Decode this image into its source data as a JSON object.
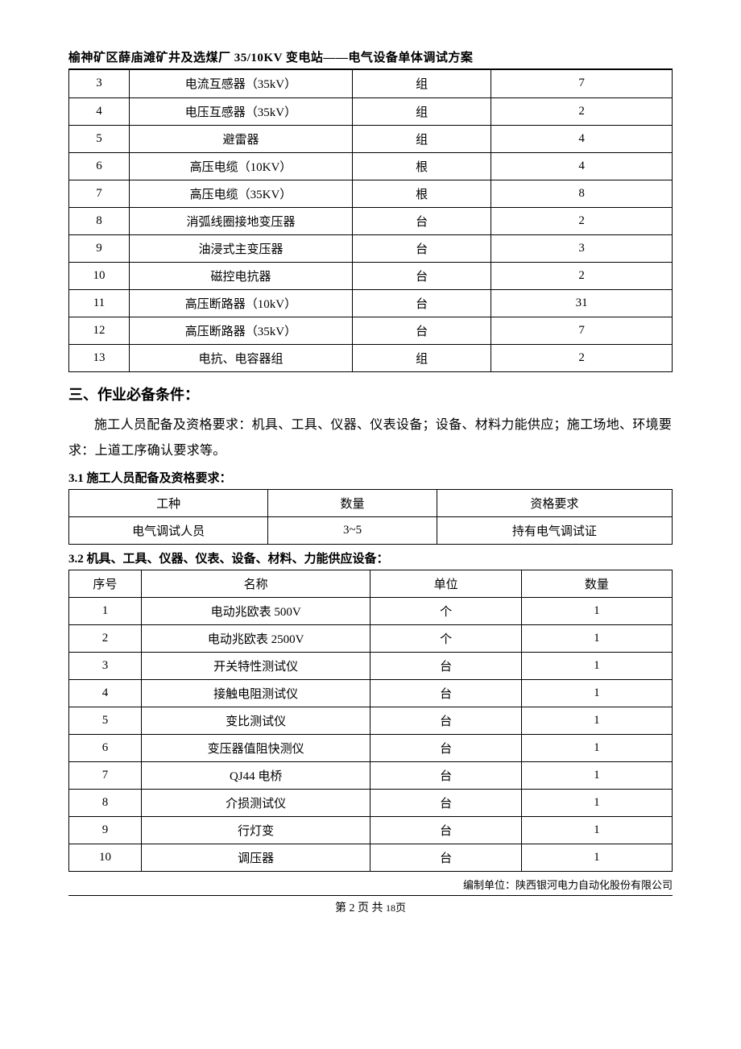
{
  "header": {
    "title": "榆神矿区薛庙滩矿井及选煤厂 35/10KV 变电站——电气设备单体调试方案"
  },
  "table1": {
    "rows": [
      [
        "3",
        "电流互感器（35kV）",
        "组",
        "7"
      ],
      [
        "4",
        "电压互感器（35kV）",
        "组",
        "2"
      ],
      [
        "5",
        "避雷器",
        "组",
        "4"
      ],
      [
        "6",
        "高压电缆（10KV）",
        "根",
        "4"
      ],
      [
        "7",
        "高压电缆（35KV）",
        "根",
        "8"
      ],
      [
        "8",
        "消弧线圈接地变压器",
        "台",
        "2"
      ],
      [
        "9",
        "油浸式主变压器",
        "台",
        "3"
      ],
      [
        "10",
        "磁控电抗器",
        "台",
        "2"
      ],
      [
        "11",
        "高压断路器（10kV）",
        "台",
        "31"
      ],
      [
        "12",
        "高压断路器（35kV）",
        "台",
        "7"
      ],
      [
        "13",
        "电抗、电容器组",
        "组",
        "2"
      ]
    ]
  },
  "section3": {
    "heading": "三、作业必备条件：",
    "body": "施工人员配备及资格要求：机具、工具、仪器、仪表设备；设备、材料力能供应；施工场地、环境要求：上道工序确认要求等。"
  },
  "sub31": {
    "heading": "3.1 施工人员配备及资格要求：",
    "columns": [
      "工种",
      "数量",
      "资格要求"
    ],
    "rows": [
      [
        "电气调试人员",
        "3~5",
        "持有电气调试证"
      ]
    ]
  },
  "sub32": {
    "heading": "3.2 机具、工具、仪器、仪表、设备、材料、力能供应设备：",
    "columns": [
      "序号",
      "名称",
      "单位",
      "数量"
    ],
    "rows": [
      [
        "1",
        "电动兆欧表 500V",
        "个",
        "1"
      ],
      [
        "2",
        "电动兆欧表 2500V",
        "个",
        "1"
      ],
      [
        "3",
        "开关特性测试仪",
        "台",
        "1"
      ],
      [
        "4",
        "接触电阻测试仪",
        "台",
        "1"
      ],
      [
        "5",
        "变比测试仪",
        "台",
        "1"
      ],
      [
        "6",
        "变压器值阻快测仪",
        "台",
        "1"
      ],
      [
        "7",
        "QJ44 电桥",
        "台",
        "1"
      ],
      [
        "8",
        "介损测试仪",
        "台",
        "1"
      ],
      [
        "9",
        "行灯变",
        "台",
        "1"
      ],
      [
        "10",
        "调压器",
        "台",
        "1"
      ]
    ]
  },
  "footer": {
    "org_label": "编制单位：",
    "org_name": "陕西银河电力自动化股份有限公司",
    "page_prefix": "第 ",
    "page_current": "2",
    "page_mid": " 页 共 ",
    "page_total": "18",
    "page_suffix": "页"
  }
}
